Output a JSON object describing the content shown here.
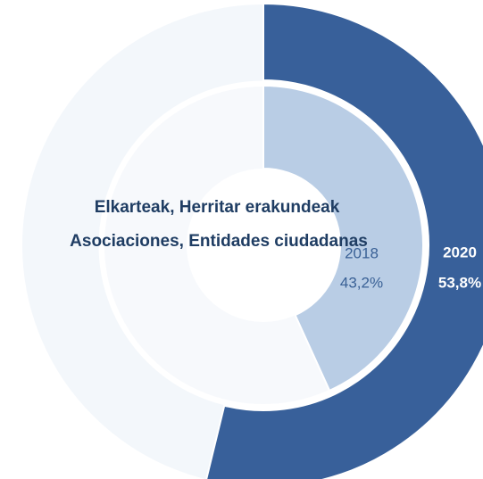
{
  "chart_data": {
    "type": "donut",
    "title": "Elkarteak, Herritar erakundeak",
    "subtitle": "Asociaciones, Entidades ciudadanas",
    "series": [
      {
        "name": "2020",
        "color": "#38609a",
        "values": [
          53.8
        ],
        "value_labels": [
          "53,8%"
        ]
      },
      {
        "name": "2018",
        "color": "#b9cde5",
        "values": [
          43.2
        ],
        "value_labels": [
          "43,2%"
        ]
      }
    ]
  }
}
